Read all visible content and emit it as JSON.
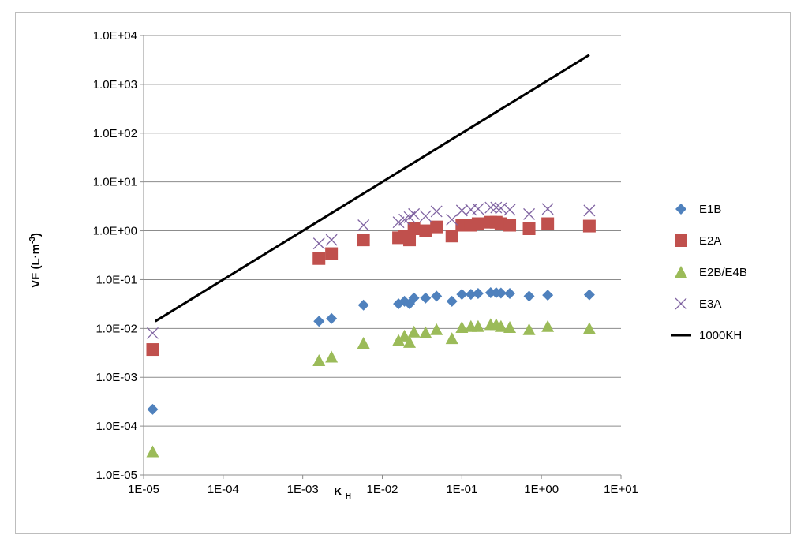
{
  "chart_data": {
    "type": "scatter",
    "title": "",
    "xlabel": "K",
    "xlabel_sub": "H",
    "ylabel": "VF (L·m",
    "ylabel_sup": "-3",
    "ylabel_close": ")",
    "x_scale": "log",
    "y_scale": "log",
    "xlim": [
      1e-05,
      10
    ],
    "ylim": [
      1e-05,
      10000
    ],
    "x_ticks": [
      {
        "value": 1e-05,
        "label": "1E-05"
      },
      {
        "value": 0.0001,
        "label": "1E-04"
      },
      {
        "value": 0.001,
        "label": "1E-03"
      },
      {
        "value": 0.01,
        "label": "1E-02"
      },
      {
        "value": 0.1,
        "label": "1E-01"
      },
      {
        "value": 1,
        "label": "1E+00"
      },
      {
        "value": 10,
        "label": "1E+01"
      }
    ],
    "y_ticks": [
      {
        "value": 1e-05,
        "label": "1.0E-05"
      },
      {
        "value": 0.0001,
        "label": "1.0E-04"
      },
      {
        "value": 0.001,
        "label": "1.0E-03"
      },
      {
        "value": 0.01,
        "label": "1.0E-02"
      },
      {
        "value": 0.1,
        "label": "1.0E-01"
      },
      {
        "value": 1,
        "label": "1.0E+00"
      },
      {
        "value": 10,
        "label": "1.0E+01"
      },
      {
        "value": 100,
        "label": "1.0E+02"
      },
      {
        "value": 1000,
        "label": "1.0E+03"
      },
      {
        "value": 10000,
        "label": "1.0E+04"
      }
    ],
    "grid": "horizontal major",
    "legend_position": "right",
    "series": [
      {
        "name": "E1B",
        "marker": "diamond",
        "color": "#4f81bd",
        "x": [
          1.3e-05,
          0.0016,
          0.0023,
          0.0058,
          0.016,
          0.019,
          0.022,
          0.025,
          0.035,
          0.048,
          0.075,
          0.1,
          0.13,
          0.16,
          0.23,
          0.27,
          0.31,
          0.4,
          0.7,
          1.2,
          4.0
        ],
        "y": [
          0.00022,
          0.014,
          0.016,
          0.03,
          0.032,
          0.036,
          0.032,
          0.042,
          0.042,
          0.046,
          0.036,
          0.05,
          0.05,
          0.052,
          0.054,
          0.054,
          0.053,
          0.052,
          0.046,
          0.048,
          0.049
        ]
      },
      {
        "name": "E2A",
        "marker": "square",
        "color": "#c0504d",
        "x": [
          1.3e-05,
          0.0016,
          0.0023,
          0.0058,
          0.016,
          0.019,
          0.022,
          0.025,
          0.035,
          0.048,
          0.075,
          0.1,
          0.13,
          0.16,
          0.23,
          0.27,
          0.31,
          0.4,
          0.7,
          1.2,
          4.0
        ],
        "y": [
          0.0037,
          0.27,
          0.34,
          0.65,
          0.72,
          0.78,
          0.65,
          1.1,
          1.0,
          1.2,
          0.78,
          1.3,
          1.3,
          1.4,
          1.5,
          1.5,
          1.4,
          1.3,
          1.1,
          1.4,
          1.25
        ]
      },
      {
        "name": "E2B/E4B",
        "marker": "triangle",
        "color": "#9bbb59",
        "x": [
          1.3e-05,
          0.0016,
          0.0023,
          0.0058,
          0.016,
          0.019,
          0.022,
          0.025,
          0.035,
          0.048,
          0.075,
          0.1,
          0.13,
          0.16,
          0.23,
          0.27,
          0.31,
          0.4,
          0.7,
          1.2,
          4.0
        ],
        "y": [
          3e-05,
          0.0022,
          0.0026,
          0.005,
          0.0057,
          0.007,
          0.0052,
          0.0085,
          0.0082,
          0.0095,
          0.0062,
          0.0105,
          0.011,
          0.011,
          0.012,
          0.012,
          0.011,
          0.0105,
          0.0095,
          0.011,
          0.01
        ]
      },
      {
        "name": "E3A",
        "marker": "x",
        "color": "#8064a2",
        "x": [
          1.3e-05,
          0.0016,
          0.0023,
          0.0058,
          0.016,
          0.019,
          0.022,
          0.025,
          0.035,
          0.048,
          0.075,
          0.1,
          0.13,
          0.16,
          0.23,
          0.27,
          0.31,
          0.4,
          0.7,
          1.2,
          4.0
        ],
        "y": [
          0.008,
          0.55,
          0.65,
          1.3,
          1.5,
          1.7,
          1.9,
          2.2,
          2.0,
          2.5,
          1.7,
          2.6,
          2.7,
          2.8,
          3.0,
          3.0,
          2.9,
          2.7,
          2.2,
          2.8,
          2.6
        ]
      },
      {
        "name": "1000KH",
        "marker": "line",
        "color": "#000000",
        "x": [
          1.4e-05,
          4.0
        ],
        "y": [
          0.014,
          4000
        ]
      }
    ]
  }
}
